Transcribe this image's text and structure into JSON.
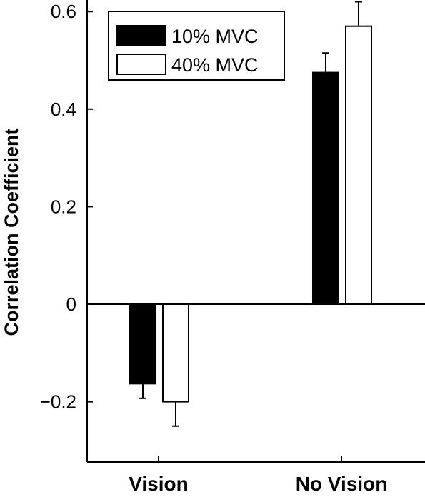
{
  "chart_data": {
    "type": "bar",
    "title": "",
    "xlabel": "",
    "ylabel": "Correlation Coefficient",
    "categories": [
      "Vision",
      "No Vision"
    ],
    "series": [
      {
        "name": "10% MVC",
        "color": "#000000",
        "values": [
          -0.163,
          0.475
        ],
        "errors": [
          0.03,
          0.04
        ]
      },
      {
        "name": "40% MVC",
        "color": "#ffffff",
        "values": [
          -0.2,
          0.57
        ],
        "errors": [
          0.05,
          0.05
        ]
      }
    ],
    "ylim": [
      -0.32,
      0.64
    ],
    "yticks": [
      -0.2,
      0,
      0.2,
      0.4,
      0.6
    ],
    "ytick_labels": [
      "−0.2",
      "0",
      "0.2",
      "0.4",
      "0.6"
    ],
    "legend_position": "top-left",
    "grid": false
  }
}
